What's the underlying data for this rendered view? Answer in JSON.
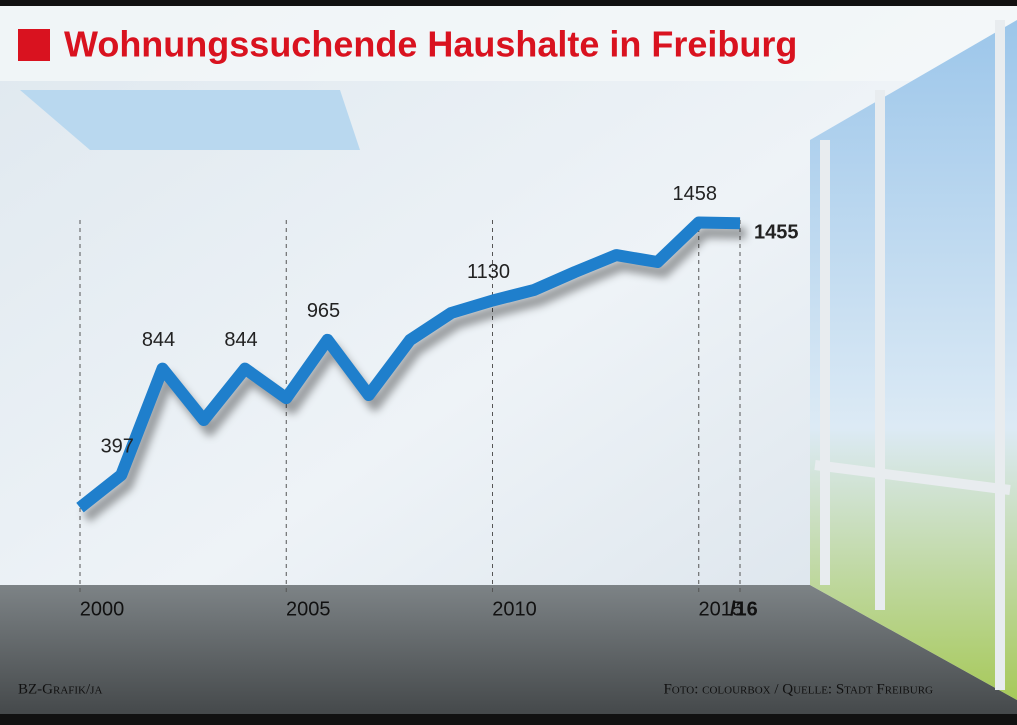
{
  "chart_data": {
    "type": "line",
    "title": "Wohnungssuchende Haushalte in Freiburg",
    "x": [
      2000,
      2001,
      2002,
      2003,
      2004,
      2005,
      2006,
      2007,
      2008,
      2009,
      2010,
      2011,
      2012,
      2013,
      2014,
      2015,
      2016
    ],
    "series": [
      {
        "name": "Wohnungssuchende Haushalte",
        "color": "#1f7fcc",
        "values": [
          260,
          397,
          844,
          628,
          844,
          720,
          965,
          733,
          964,
          1078,
          1130,
          1174,
          1250,
          1321,
          1292,
          1458,
          1455
        ],
        "value_labels": [
          null,
          "397",
          "844",
          null,
          "844",
          null,
          "965",
          null,
          null,
          null,
          "1130",
          null,
          null,
          null,
          null,
          "1458",
          "1455"
        ]
      }
    ],
    "xlim": [
      2000,
      2016
    ],
    "xticks": [
      2000,
      2005,
      2010,
      2015,
      {
        "value": 2016,
        "label": "/16"
      }
    ],
    "ylim": [
      0,
      1600
    ],
    "credit_left": "BZ-Grafik/ja",
    "credit_right": "Foto: colourbox / Quelle: Stadt Freiburg"
  }
}
